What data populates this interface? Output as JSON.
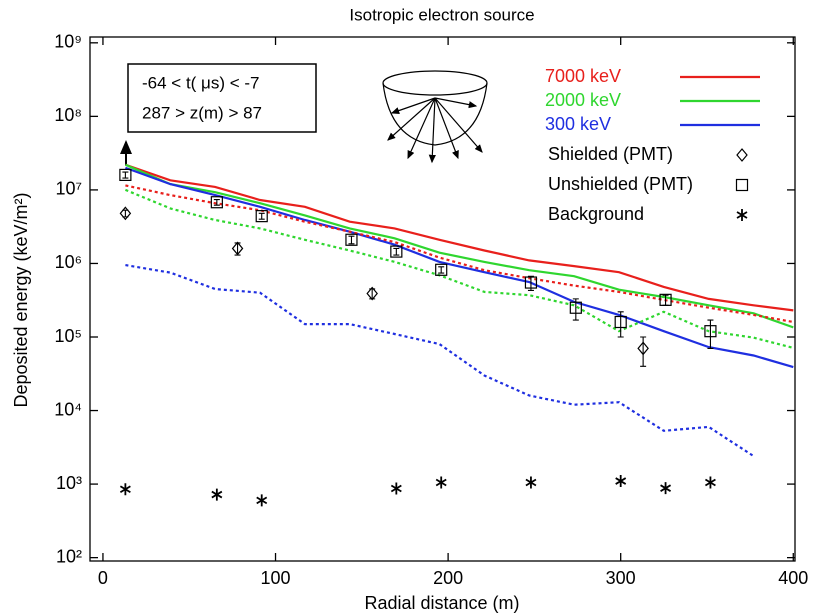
{
  "chart_data": {
    "type": "line",
    "title": "Isotropic electron source",
    "xlabel": "Radial distance (m)",
    "ylabel": "Deposited energy (keV/m²)",
    "annotations": [
      "-64 < t( μs) < -7",
      "287 > z(m) > 87"
    ],
    "xlim": [
      -7.5,
      401
    ],
    "ylim": [
      90,
      1200000000
    ],
    "log_y": true,
    "xticks": [
      0,
      100,
      200,
      300,
      400
    ],
    "yticks": [
      {
        "value": 100,
        "label": "10²"
      },
      {
        "value": 1000,
        "label": "10³"
      },
      {
        "value": 10000,
        "label": "10⁴"
      },
      {
        "value": 100000,
        "label": "10⁵"
      },
      {
        "value": 1000000,
        "label": "10⁶"
      },
      {
        "value": 10000000,
        "label": "10⁷"
      },
      {
        "value": 100000000,
        "label": "10⁸"
      },
      {
        "value": 1000000000,
        "label": "10⁹"
      }
    ],
    "series": [
      {
        "name": "7000 keV",
        "color": "#e8201c",
        "style": "solid",
        "x": [
          13,
          39,
          65,
          91,
          117,
          143,
          169,
          195,
          221,
          247,
          273,
          299,
          325,
          351,
          377,
          400
        ],
        "values": [
          22000000,
          13500000,
          11000000,
          7300000,
          5900000,
          3700000,
          3000000,
          2100000,
          1500000,
          1100000,
          920000,
          760000,
          480000,
          330000,
          270000,
          230000
        ]
      },
      {
        "name": "2000 keV",
        "color": "#2fd62f",
        "style": "solid",
        "x": [
          13,
          39,
          65,
          91,
          117,
          143,
          169,
          195,
          221,
          247,
          273,
          299,
          325,
          351,
          377,
          400
        ],
        "values": [
          22000000,
          12000000,
          9300000,
          6600000,
          4500000,
          3000000,
          2200000,
          1400000,
          1050000,
          810000,
          670000,
          440000,
          350000,
          270000,
          210000,
          135000
        ]
      },
      {
        "name": "300 keV",
        "color": "#1f2fe0",
        "style": "solid",
        "x": [
          13,
          39,
          65,
          91,
          117,
          143,
          169,
          195,
          221,
          247,
          273,
          299,
          325,
          351,
          377,
          400
        ],
        "values": [
          20000000,
          12000000,
          8500000,
          5900000,
          3900000,
          2700000,
          1800000,
          1050000,
          760000,
          560000,
          300000,
          200000,
          120000,
          73000,
          56000,
          39000
        ]
      },
      {
        "color": "#e8201c",
        "style": "dotted",
        "x": [
          13,
          39,
          65,
          91,
          117,
          143,
          169,
          195,
          221,
          247,
          273,
          299,
          325,
          351,
          377,
          400
        ],
        "values": [
          11500000,
          8500000,
          6600000,
          5300000,
          3700000,
          2700000,
          1950000,
          1200000,
          810000,
          630000,
          500000,
          410000,
          320000,
          250000,
          200000,
          160000
        ]
      },
      {
        "color": "#2fd62f",
        "style": "dotted",
        "x": [
          13,
          39,
          65,
          91,
          117,
          143,
          169,
          195,
          221,
          247,
          273,
          299,
          325,
          351,
          377,
          400
        ],
        "values": [
          10000000,
          5600000,
          3900000,
          3000000,
          2100000,
          1500000,
          1050000,
          690000,
          410000,
          370000,
          270000,
          120000,
          220000,
          120000,
          98000,
          71000
        ]
      },
      {
        "color": "#1f2fe0",
        "style": "dotted",
        "x": [
          13,
          39,
          65,
          91,
          117,
          143,
          169,
          195,
          221,
          247,
          273,
          299,
          325,
          351,
          377
        ],
        "values": [
          950000,
          750000,
          450000,
          400000,
          150000,
          150000,
          110000,
          80000,
          30000,
          16000,
          12000,
          13000,
          5300,
          6000,
          2400
        ]
      },
      {
        "name": "Shielded (PMT)",
        "color": "#000000",
        "marker": "diamond",
        "x": [
          13,
          78,
          156,
          313
        ],
        "values": [
          4800000,
          1600000,
          390000,
          70000
        ],
        "yerr": [
          500000,
          300000,
          60000,
          30000
        ]
      },
      {
        "name": "Unshielded (PMT)",
        "color": "#000000",
        "marker": "square",
        "x": [
          13,
          66,
          92,
          144,
          170,
          196,
          248,
          274,
          300,
          326,
          352
        ],
        "values": [
          16000000,
          6800000,
          4400000,
          2100000,
          1450000,
          820000,
          550000,
          250000,
          160000,
          320000,
          120000
        ],
        "yerr": [
          1500000,
          600000,
          400000,
          250000,
          150000,
          80000,
          120000,
          80000,
          60000,
          50000,
          50000
        ]
      },
      {
        "name": "Background",
        "color": "#000000",
        "marker": "star",
        "x": [
          13,
          66,
          92,
          170,
          196,
          248,
          300,
          326,
          352
        ],
        "values": [
          850,
          720,
          600,
          870,
          1050,
          1050,
          1100,
          880,
          1050
        ]
      }
    ]
  }
}
